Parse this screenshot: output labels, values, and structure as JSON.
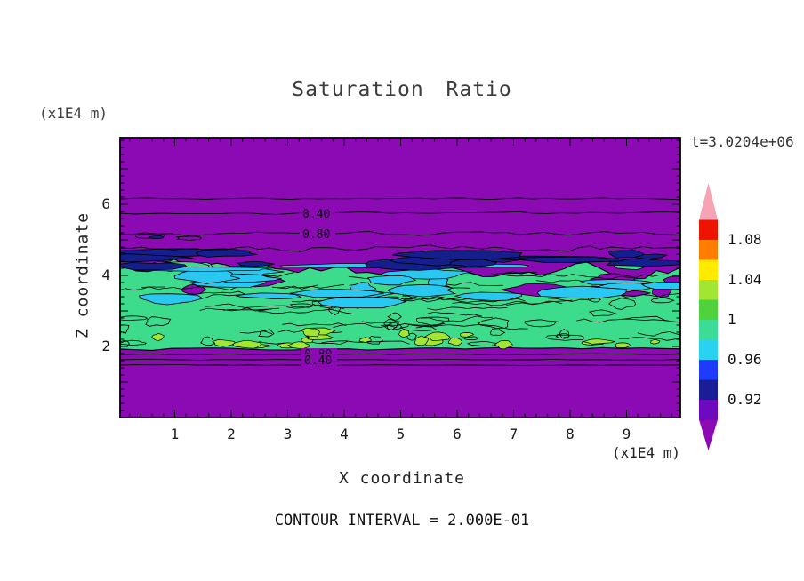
{
  "title": "Saturation Ratio",
  "timestamp": "t=3.0204e+06",
  "footer": "CONTOUR INTERVAL = 2.000E-01",
  "axes": {
    "x_label": "X coordinate",
    "x_unit": "(x1E4 m)",
    "y_label": "Z coordinate",
    "y_unit": "(x1E4 m)",
    "x_ticks": [
      "1",
      "2",
      "3",
      "4",
      "5",
      "6",
      "7",
      "8",
      "9"
    ],
    "y_ticks": [
      "2",
      "4",
      "6"
    ]
  },
  "colorbar": {
    "labels": [
      "1.08",
      "1.04",
      "1",
      "0.96",
      "0.92"
    ],
    "segment_colors_top_to_bottom": [
      "#EE1400",
      "#FF7D00",
      "#FFEB00",
      "#A0E632",
      "#50D23C",
      "#3CDC96",
      "#28D2F0",
      "#1E3CFF",
      "#191E96",
      "#6E0ABE"
    ],
    "over_color": "#F6A4B4",
    "under_color": "#8C0AB4"
  },
  "colors": {
    "background": "#8C0AB4",
    "band_green": "#3CDC8C",
    "patch_cyan": "#28C8F0",
    "streak_navy": "#141E8C",
    "patch_yellow_green": "#A0E632",
    "contour_line": "#000000",
    "frame": "#000000"
  },
  "contour_labels": {
    "upper": [
      "0.40",
      "0.80"
    ],
    "lower": [
      "0.80",
      "0.40"
    ]
  },
  "chart_data": {
    "type": "heatmap",
    "title": "Saturation Ratio",
    "xlabel": "X coordinate (x1E4 m)",
    "ylabel": "Z coordinate (x1E4 m)",
    "x_range": [
      0,
      10
    ],
    "z_range": [
      0,
      8
    ],
    "x_tick_values": [
      1,
      2,
      3,
      4,
      5,
      6,
      7,
      8,
      9
    ],
    "z_tick_values": [
      2,
      4,
      6
    ],
    "time_annotation": "t=3.0204e+06",
    "contour_interval": 0.2,
    "colorbar_tick_values": [
      1.08,
      1.04,
      1,
      0.96,
      0.92
    ],
    "fill_levels": [
      0.9,
      0.92,
      0.94,
      0.96,
      0.98,
      1.0,
      1.02,
      1.04,
      1.06,
      1.08,
      1.1
    ],
    "fill_colors_low_to_high": [
      "#8C0AB4",
      "#6E0ABE",
      "#191E96",
      "#1E3CFF",
      "#28D2F0",
      "#3CDC96",
      "#50D23C",
      "#A0E632",
      "#FFEB00",
      "#FF7D00",
      "#EE1400",
      "#F6A4B4"
    ],
    "features": [
      {
        "region": "z < ~1.9",
        "value": "saturation ratio < 0.90 (purple, sub-saturated)"
      },
      {
        "region": "1.9 < z < ~4.3",
        "value": "turbulent saturated cloud layer ~0.96-1.02 (green with cyan patches 0.96-0.98 and yellow-green patches 1.02-1.04)"
      },
      {
        "region": "4.3 < z < ~5.0",
        "value": "dark blue streaks ~0.90-0.96 (entrainment zone)"
      },
      {
        "region": "z > ~5.0",
        "value": "saturation ratio < 0.90 (purple)"
      }
    ],
    "line_contours": [
      {
        "value": 0.4,
        "location": "z ~ 6.15 and z ~ 1.5"
      },
      {
        "value": 0.8,
        "location": "z ~ 5.7 and z ~ 1.7"
      }
    ],
    "legend_position": "right colorbar with over/under triangles",
    "grid": false
  }
}
